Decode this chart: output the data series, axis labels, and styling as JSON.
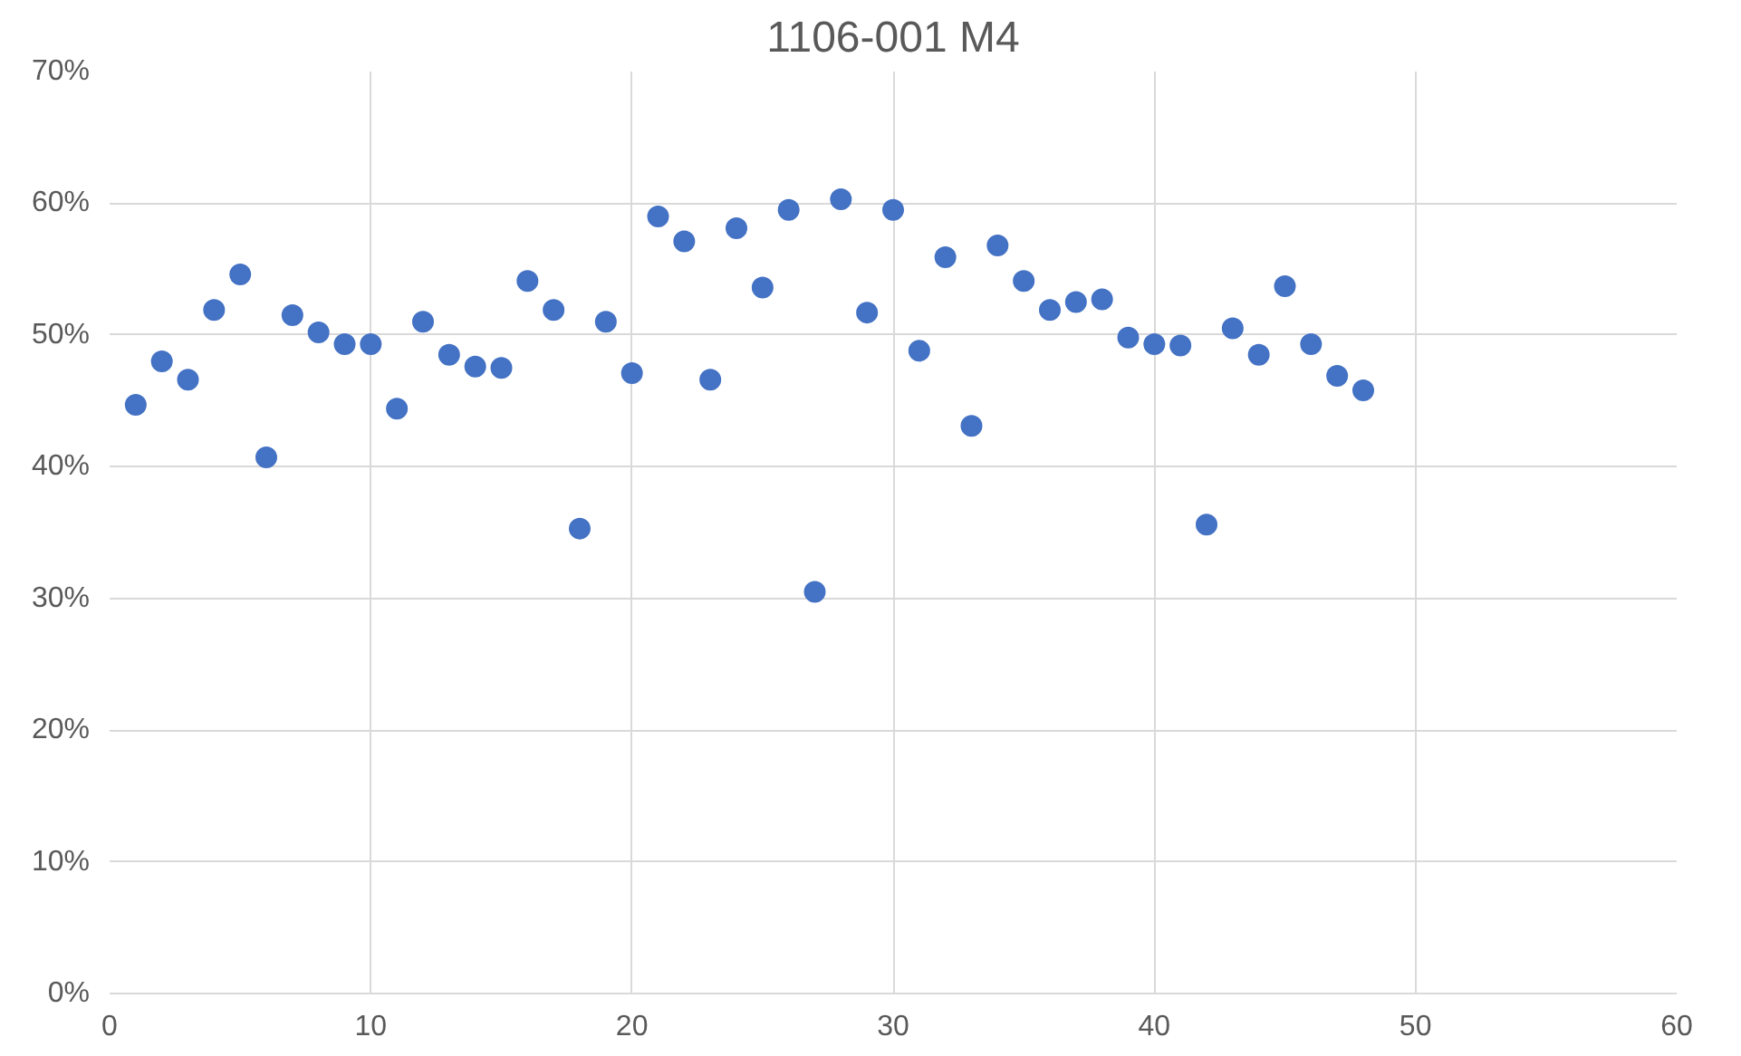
{
  "chart_data": {
    "type": "scatter",
    "title": "1106-001 M4",
    "x": [
      1,
      2,
      3,
      4,
      5,
      6,
      7,
      8,
      9,
      10,
      11,
      12,
      13,
      14,
      15,
      16,
      17,
      18,
      19,
      20,
      21,
      22,
      23,
      24,
      25,
      26,
      27,
      28,
      29,
      30,
      31,
      32,
      33,
      34,
      35,
      36,
      37,
      38,
      39,
      40,
      41,
      42,
      43,
      44,
      45,
      46,
      47,
      48
    ],
    "series": [
      {
        "color": "#4472c4",
        "values": [
          44.7,
          48.0,
          46.6,
          51.9,
          54.6,
          40.7,
          51.5,
          50.2,
          49.3,
          49.3,
          44.4,
          51.0,
          48.5,
          47.6,
          47.5,
          54.1,
          51.9,
          35.3,
          51.0,
          47.1,
          59.0,
          57.1,
          46.6,
          58.1,
          53.6,
          59.5,
          30.5,
          60.3,
          51.7,
          59.5,
          48.8,
          55.9,
          43.1,
          56.8,
          54.1,
          51.9,
          52.5,
          52.7,
          49.8,
          49.3,
          49.2,
          35.6,
          50.5,
          48.5,
          53.7,
          49.3,
          46.9,
          45.8
        ]
      }
    ],
    "xlim": [
      0,
      60
    ],
    "xticks": [
      0,
      10,
      20,
      30,
      40,
      50,
      60
    ],
    "ylim": [
      0,
      70
    ],
    "yticks": [
      {
        "value": 0,
        "label": "0%"
      },
      {
        "value": 10,
        "label": "10%"
      },
      {
        "value": 20,
        "label": "20%"
      },
      {
        "value": 30,
        "label": "30%"
      },
      {
        "value": 40,
        "label": "40%"
      },
      {
        "value": 50,
        "label": "50%"
      },
      {
        "value": 60,
        "label": "60%"
      },
      {
        "value": 70,
        "label": "70%"
      }
    ],
    "grid": true,
    "marker": "circle"
  }
}
